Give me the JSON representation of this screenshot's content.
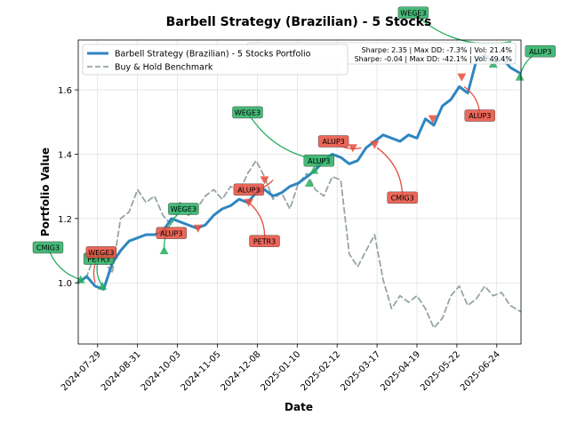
{
  "chart_data": {
    "type": "line",
    "title": "Barbell Strategy (Brazilian) - 5 Stocks",
    "xlabel": "Date",
    "ylabel": "Portfolio Value",
    "ylim": [
      0.81,
      1.755
    ],
    "xlim": [
      "2024-07-13",
      "2025-07-14"
    ],
    "x_ticks": [
      "2024-07-29",
      "2024-08-31",
      "2024-10-03",
      "2024-11-05",
      "2024-12-08",
      "2025-01-10",
      "2025-02-12",
      "2025-03-17",
      "2025-04-19",
      "2025-05-22",
      "2025-06-24"
    ],
    "y_ticks": [
      1.0,
      1.2,
      1.4,
      1.6
    ],
    "grid": true,
    "legend_position": "upper-left",
    "stats": [
      "Sharpe: 2.35 | Max DD: -7.3% | Vol: 21.4%",
      "Sharpe: -0.04 | Max DD: -42.1% | Vol: 49.4%"
    ],
    "series": [
      {
        "name": "Barbell Strategy (Brazilian) - 5 Stocks Portfolio",
        "color": "#2e86c1",
        "style": "solid",
        "points": [
          [
            "2024-07-13",
            1.0
          ],
          [
            "2024-07-20",
            1.02
          ],
          [
            "2024-07-27",
            0.99
          ],
          [
            "2024-08-03",
            0.98
          ],
          [
            "2024-08-10",
            1.06
          ],
          [
            "2024-08-17",
            1.1
          ],
          [
            "2024-08-24",
            1.13
          ],
          [
            "2024-08-31",
            1.14
          ],
          [
            "2024-09-07",
            1.15
          ],
          [
            "2024-09-14",
            1.15
          ],
          [
            "2024-09-21",
            1.16
          ],
          [
            "2024-09-28",
            1.2
          ],
          [
            "2024-10-05",
            1.19
          ],
          [
            "2024-10-12",
            1.18
          ],
          [
            "2024-10-19",
            1.17
          ],
          [
            "2024-10-26",
            1.18
          ],
          [
            "2024-11-02",
            1.21
          ],
          [
            "2024-11-09",
            1.23
          ],
          [
            "2024-11-16",
            1.24
          ],
          [
            "2024-11-23",
            1.26
          ],
          [
            "2024-11-30",
            1.25
          ],
          [
            "2024-12-07",
            1.28
          ],
          [
            "2024-12-14",
            1.29
          ],
          [
            "2024-12-21",
            1.27
          ],
          [
            "2024-12-28",
            1.28
          ],
          [
            "2025-01-04",
            1.3
          ],
          [
            "2025-01-11",
            1.31
          ],
          [
            "2025-01-18",
            1.33
          ],
          [
            "2025-01-25",
            1.35
          ],
          [
            "2025-02-01",
            1.38
          ],
          [
            "2025-02-08",
            1.4
          ],
          [
            "2025-02-15",
            1.39
          ],
          [
            "2025-02-22",
            1.37
          ],
          [
            "2025-03-01",
            1.38
          ],
          [
            "2025-03-08",
            1.42
          ],
          [
            "2025-03-15",
            1.44
          ],
          [
            "2025-03-22",
            1.46
          ],
          [
            "2025-03-29",
            1.45
          ],
          [
            "2025-04-05",
            1.44
          ],
          [
            "2025-04-12",
            1.46
          ],
          [
            "2025-04-19",
            1.45
          ],
          [
            "2025-04-26",
            1.51
          ],
          [
            "2025-05-03",
            1.49
          ],
          [
            "2025-05-10",
            1.55
          ],
          [
            "2025-05-17",
            1.57
          ],
          [
            "2025-05-24",
            1.61
          ],
          [
            "2025-05-31",
            1.59
          ],
          [
            "2025-06-07",
            1.69
          ],
          [
            "2025-06-14",
            1.71
          ],
          [
            "2025-06-21",
            1.68
          ],
          [
            "2025-06-28",
            1.7
          ],
          [
            "2025-07-05",
            1.67
          ],
          [
            "2025-07-14",
            1.65
          ]
        ]
      },
      {
        "name": "Buy & Hold Benchmark",
        "color": "#95a5a6",
        "style": "dashed",
        "points": [
          [
            "2024-07-13",
            1.0
          ],
          [
            "2024-07-20",
            1.02
          ],
          [
            "2024-07-27",
            1.09
          ],
          [
            "2024-08-03",
            1.07
          ],
          [
            "2024-08-10",
            1.03
          ],
          [
            "2024-08-17",
            1.2
          ],
          [
            "2024-08-24",
            1.22
          ],
          [
            "2024-08-31",
            1.29
          ],
          [
            "2024-09-07",
            1.25
          ],
          [
            "2024-09-14",
            1.27
          ],
          [
            "2024-09-21",
            1.21
          ],
          [
            "2024-09-28",
            1.18
          ],
          [
            "2024-10-05",
            1.25
          ],
          [
            "2024-10-12",
            1.21
          ],
          [
            "2024-10-19",
            1.23
          ],
          [
            "2024-10-26",
            1.27
          ],
          [
            "2024-11-02",
            1.29
          ],
          [
            "2024-11-09",
            1.26
          ],
          [
            "2024-11-16",
            1.3
          ],
          [
            "2024-11-23",
            1.28
          ],
          [
            "2024-11-30",
            1.34
          ],
          [
            "2024-12-07",
            1.38
          ],
          [
            "2024-12-14",
            1.33
          ],
          [
            "2024-12-21",
            1.26
          ],
          [
            "2024-12-28",
            1.28
          ],
          [
            "2025-01-04",
            1.23
          ],
          [
            "2025-01-11",
            1.31
          ],
          [
            "2025-01-18",
            1.34
          ],
          [
            "2025-01-25",
            1.29
          ],
          [
            "2025-02-01",
            1.27
          ],
          [
            "2025-02-08",
            1.33
          ],
          [
            "2025-02-15",
            1.32
          ],
          [
            "2025-02-22",
            1.09
          ],
          [
            "2025-03-01",
            1.05
          ],
          [
            "2025-03-08",
            1.1
          ],
          [
            "2025-03-15",
            1.15
          ],
          [
            "2025-03-22",
            1.01
          ],
          [
            "2025-03-29",
            0.92
          ],
          [
            "2025-04-05",
            0.96
          ],
          [
            "2025-04-12",
            0.94
          ],
          [
            "2025-04-19",
            0.96
          ],
          [
            "2025-04-26",
            0.92
          ],
          [
            "2025-05-03",
            0.86
          ],
          [
            "2025-05-10",
            0.89
          ],
          [
            "2025-05-17",
            0.96
          ],
          [
            "2025-05-24",
            0.99
          ],
          [
            "2025-05-31",
            0.93
          ],
          [
            "2025-06-07",
            0.95
          ],
          [
            "2025-06-14",
            0.99
          ],
          [
            "2025-06-21",
            0.96
          ],
          [
            "2025-06-28",
            0.97
          ],
          [
            "2025-07-05",
            0.93
          ],
          [
            "2025-07-14",
            0.91
          ]
        ]
      }
    ],
    "markers": [
      {
        "type": "buy",
        "x": "2024-07-15",
        "y": 1.01
      },
      {
        "type": "buy",
        "x": "2024-08-02",
        "y": 0.99
      },
      {
        "type": "buy",
        "x": "2024-09-22",
        "y": 1.1
      },
      {
        "type": "sell",
        "x": "2024-10-20",
        "y": 1.17
      },
      {
        "type": "sell",
        "x": "2024-12-01",
        "y": 1.25
      },
      {
        "type": "sell",
        "x": "2024-12-14",
        "y": 1.32
      },
      {
        "type": "buy",
        "x": "2025-01-20",
        "y": 1.31
      },
      {
        "type": "buy",
        "x": "2025-01-24",
        "y": 1.35
      },
      {
        "type": "sell",
        "x": "2025-02-25",
        "y": 1.42
      },
      {
        "type": "sell",
        "x": "2025-03-15",
        "y": 1.43
      },
      {
        "type": "sell",
        "x": "2025-05-02",
        "y": 1.51
      },
      {
        "type": "sell",
        "x": "2025-05-26",
        "y": 1.64
      },
      {
        "type": "buy",
        "x": "2025-06-21",
        "y": 1.68
      },
      {
        "type": "buy",
        "x": "2025-07-13",
        "y": 1.64
      }
    ],
    "annotations": [
      {
        "label": "CMIG3",
        "kind": "buy",
        "x": "2024-07-15",
        "y": 1.01,
        "lx": "2024-06-18",
        "ly": 1.11
      },
      {
        "label": "PETR3",
        "kind": "buy",
        "x": "2024-08-02",
        "y": 0.99,
        "lx": "2024-07-30",
        "ly": 1.075
      },
      {
        "label": "WEGE3",
        "kind": "sell",
        "x": "2024-07-27",
        "y": 1.0,
        "lx": "2024-08-01",
        "ly": 1.095
      },
      {
        "label": "ALUP3",
        "kind": "sell",
        "x": "2024-09-19",
        "y": 1.16,
        "lx": "2024-09-28",
        "ly": 1.155
      },
      {
        "label": "WEGE3",
        "kind": "buy",
        "x": "2024-09-22",
        "y": 1.1,
        "lx": "2024-10-08",
        "ly": 1.23
      },
      {
        "label": "ALUP3",
        "kind": "sell",
        "x": "2024-12-21",
        "y": 1.32,
        "lx": "2024-12-01",
        "ly": 1.29
      },
      {
        "label": "PETR3",
        "kind": "sell",
        "x": "2024-12-01",
        "y": 1.25,
        "lx": "2024-12-14",
        "ly": 1.13
      },
      {
        "label": "WEGE3",
        "kind": "buy",
        "x": "2025-02-03",
        "y": 1.38,
        "lx": "2024-11-30",
        "ly": 1.53
      },
      {
        "label": "ALUP3",
        "kind": "sell",
        "x": "2025-03-04",
        "y": 1.42,
        "lx": "2025-02-09",
        "ly": 1.44
      },
      {
        "label": "ALUP3",
        "kind": "buy",
        "x": "2025-01-26",
        "y": 1.35,
        "lx": "2025-01-28",
        "ly": 1.38
      },
      {
        "label": "CMIG3",
        "kind": "sell",
        "x": "2025-03-17",
        "y": 1.42,
        "lx": "2025-04-07",
        "ly": 1.265
      },
      {
        "label": "ALUP3",
        "kind": "sell",
        "x": "2025-05-28",
        "y": 1.61,
        "lx": "2025-06-10",
        "ly": 1.52
      },
      {
        "label": "WEGE3",
        "kind": "buy",
        "x": "2025-07-06",
        "y": 1.75,
        "lx": "2025-04-16",
        "ly": 1.84
      },
      {
        "label": "ALUP3",
        "kind": "buy",
        "x": "2025-07-13",
        "y": 1.64,
        "lx": "2025-07-30",
        "ly": 1.72
      }
    ]
  }
}
